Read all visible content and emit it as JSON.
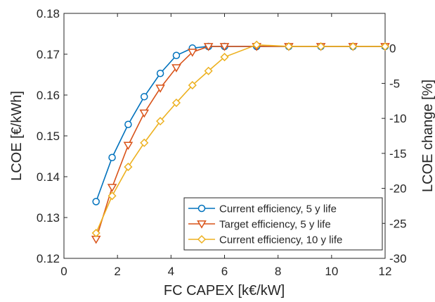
{
  "chart_data": {
    "type": "line",
    "title": "",
    "xlabel": "FC CAPEX [k€/kW]",
    "ylabel": "LCOE [€/kWh]",
    "ylabel_right": "LCOE change [%]",
    "xlim": [
      0,
      12
    ],
    "ylim": [
      0.12,
      0.18
    ],
    "ylim_right": [
      -30,
      5
    ],
    "xticks": [
      "0",
      "2",
      "4",
      "6",
      "8",
      "10",
      "12"
    ],
    "yticks": [
      "0.12",
      "0.13",
      "0.14",
      "0.15",
      "0.16",
      "0.17",
      "0.18"
    ],
    "yticks_right": [
      "-30",
      "-25",
      "-20",
      "-15",
      "-10",
      "-5",
      "0"
    ],
    "grid": false,
    "legend_position": "bottom-right",
    "series": [
      {
        "name": "Current efficiency, 5 y life",
        "color": "#0072bd",
        "marker": "circle",
        "x": [
          1.2,
          1.8,
          2.4,
          3.0,
          3.6,
          4.2,
          4.8,
          5.4,
          6.0,
          7.2,
          8.4,
          9.6,
          10.8,
          12.0
        ],
        "y": [
          0.1339,
          0.1447,
          0.1528,
          0.1596,
          0.1653,
          0.1697,
          0.1715,
          0.1719,
          0.1719,
          0.1719,
          0.1719,
          0.1719,
          0.1719,
          0.1719
        ]
      },
      {
        "name": "Target efficiency, 5 y life",
        "color": "#d95319",
        "marker": "triangle-down",
        "x": [
          1.2,
          1.8,
          2.4,
          3.0,
          3.6,
          4.2,
          4.8,
          5.4,
          6.0,
          7.2,
          8.4,
          9.6,
          10.8,
          12.0
        ],
        "y": [
          0.1247,
          0.1374,
          0.1477,
          0.1556,
          0.1617,
          0.1667,
          0.1705,
          0.1719,
          0.1719,
          0.1719,
          0.1719,
          0.1719,
          0.1719,
          0.1719
        ]
      },
      {
        "name": "Current efficiency, 10 y life",
        "color": "#edb120",
        "marker": "diamond",
        "x": [
          1.2,
          1.8,
          2.4,
          3.0,
          3.6,
          4.2,
          4.8,
          5.4,
          6.0,
          7.2,
          8.4,
          9.6,
          10.8,
          12.0
        ],
        "y": [
          0.1262,
          0.1353,
          0.1424,
          0.1483,
          0.1536,
          0.1581,
          0.1624,
          0.1659,
          0.1693,
          0.1723,
          0.1719,
          0.1719,
          0.1719,
          0.1719
        ]
      }
    ]
  }
}
